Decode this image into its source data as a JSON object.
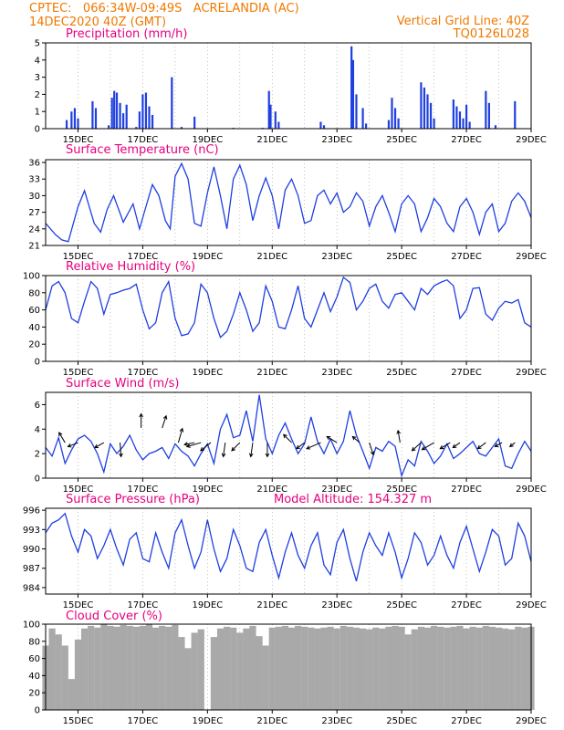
{
  "header": {
    "line1_left": "CPTEC:   066:34W-09:49S   ACRELANDIA (AC)",
    "line2_left": "14DEC2020 40Z (GMT)",
    "line1_right": "Vertical Grid Line: 40Z",
    "line2_right": "TQ0126L028"
  },
  "colors": {
    "header": "#f07800",
    "title": "#e6007e",
    "line": "#1f3fe0",
    "cloud": "#a9a9a9",
    "arrow": "#000000"
  },
  "date_labels": [
    "15DEC",
    "17DEC",
    "19DEC",
    "21DEC",
    "23DEC",
    "25DEC",
    "27DEC",
    "29DEC"
  ],
  "chart_data": [
    {
      "id": "precip",
      "type": "bar",
      "title": "Precipitation (mm/h)",
      "yticks": [
        0,
        1,
        2,
        3,
        4,
        5
      ],
      "ylim": [
        0,
        5
      ],
      "x": [
        14.65,
        14.8,
        14.9,
        15.0,
        15.45,
        15.55,
        15.95,
        16.05,
        16.12,
        16.2,
        16.3,
        16.4,
        16.5,
        16.8,
        16.9,
        17.0,
        17.1,
        17.2,
        17.3,
        17.9,
        18.2,
        18.6,
        19.8,
        20.7,
        20.9,
        20.95,
        21.1,
        21.2,
        22.5,
        22.6,
        23.45,
        23.5,
        23.6,
        23.8,
        23.9,
        24.6,
        24.7,
        24.8,
        24.9,
        25.6,
        25.7,
        25.8,
        25.9,
        26.0,
        26.6,
        26.7,
        26.8,
        26.9,
        27.0,
        27.1,
        27.6,
        27.7,
        27.9,
        28.5
      ],
      "values": [
        0.5,
        1.0,
        1.2,
        0.6,
        1.6,
        1.2,
        0.2,
        1.8,
        2.2,
        2.1,
        1.5,
        0.9,
        1.4,
        0.1,
        1.0,
        2.0,
        2.1,
        1.3,
        0.8,
        3.0,
        0.1,
        0.7,
        0.05,
        0.05,
        2.2,
        1.4,
        1.0,
        0.4,
        0.4,
        0.2,
        4.8,
        4.0,
        2.0,
        1.2,
        0.3,
        0.5,
        1.8,
        1.2,
        0.6,
        2.7,
        2.4,
        2.0,
        1.5,
        0.6,
        1.7,
        1.3,
        1.0,
        0.6,
        1.4,
        0.4,
        2.2,
        1.5,
        0.2,
        1.6
      ]
    },
    {
      "id": "temp",
      "type": "line",
      "title": "Surface Temperature (nC)",
      "yticks": [
        21,
        24,
        27,
        30,
        33,
        36
      ],
      "ylim": [
        21,
        36.5
      ],
      "x": [
        14.0,
        14.3,
        14.5,
        14.7,
        15.0,
        15.2,
        15.5,
        15.7,
        15.9,
        16.1,
        16.4,
        16.7,
        16.9,
        17.1,
        17.3,
        17.5,
        17.7,
        17.85,
        18.0,
        18.2,
        18.4,
        18.6,
        18.8,
        19.0,
        19.2,
        19.4,
        19.6,
        19.8,
        20.0,
        20.2,
        20.4,
        20.6,
        20.8,
        21.0,
        21.2,
        21.4,
        21.6,
        21.8,
        22.0,
        22.2,
        22.4,
        22.6,
        22.8,
        23.0,
        23.2,
        23.4,
        23.6,
        23.8,
        24.0,
        24.2,
        24.4,
        24.6,
        24.8,
        25.0,
        25.2,
        25.4,
        25.6,
        25.8,
        26.0,
        26.2,
        26.4,
        26.6,
        26.8,
        27.0,
        27.2,
        27.4,
        27.6,
        27.8,
        28.0,
        28.2,
        28.4,
        28.6,
        28.8,
        29.0
      ],
      "values": [
        25.0,
        23.0,
        22.0,
        21.7,
        28.0,
        30.9,
        25.0,
        23.4,
        27.5,
        30.0,
        25.2,
        28.5,
        24.0,
        28.0,
        32.0,
        30.0,
        25.5,
        24.0,
        33.5,
        35.8,
        33.0,
        25.0,
        24.5,
        30.5,
        35.2,
        30.0,
        24.0,
        33.0,
        35.5,
        32.0,
        25.5,
        30.0,
        33.2,
        30.0,
        24.0,
        31.0,
        33.0,
        30.0,
        25.0,
        25.5,
        30.0,
        31.0,
        28.5,
        30.5,
        27.0,
        28.0,
        30.5,
        29.0,
        24.5,
        28.0,
        30.0,
        27.0,
        23.5,
        28.5,
        30.0,
        28.5,
        23.5,
        26.0,
        29.5,
        28.0,
        25.0,
        23.5,
        28.0,
        29.5,
        27.0,
        23.0,
        27.0,
        28.5,
        23.5,
        25.0,
        29.0,
        30.5,
        29.0,
        26.0
      ]
    },
    {
      "id": "rh",
      "type": "line",
      "title": "Relative Humidity (%)",
      "yticks": [
        0,
        20,
        40,
        60,
        80,
        100
      ],
      "ylim": [
        0,
        100
      ],
      "x": [
        14.0,
        14.2,
        14.4,
        14.6,
        14.8,
        15.0,
        15.2,
        15.4,
        15.6,
        15.8,
        16.0,
        16.2,
        16.4,
        16.6,
        16.8,
        17.0,
        17.2,
        17.4,
        17.6,
        17.8,
        18.0,
        18.2,
        18.4,
        18.6,
        18.8,
        19.0,
        19.2,
        19.4,
        19.6,
        19.8,
        20.0,
        20.2,
        20.4,
        20.6,
        20.8,
        21.0,
        21.2,
        21.4,
        21.6,
        21.8,
        22.0,
        22.2,
        22.4,
        22.6,
        22.8,
        23.0,
        23.2,
        23.4,
        23.6,
        23.8,
        24.0,
        24.2,
        24.4,
        24.6,
        24.8,
        25.0,
        25.2,
        25.4,
        25.6,
        25.8,
        26.0,
        26.2,
        26.4,
        26.6,
        26.8,
        27.0,
        27.2,
        27.4,
        27.6,
        27.8,
        28.0,
        28.2,
        28.4,
        28.6,
        28.8,
        29.0
      ],
      "values": [
        60,
        88,
        93,
        80,
        50,
        45,
        70,
        93,
        85,
        55,
        78,
        80,
        83,
        85,
        90,
        60,
        38,
        45,
        80,
        93,
        50,
        30,
        32,
        45,
        90,
        80,
        50,
        28,
        35,
        55,
        80,
        60,
        35,
        45,
        88,
        70,
        40,
        38,
        60,
        88,
        50,
        40,
        60,
        80,
        58,
        75,
        98,
        92,
        60,
        70,
        85,
        90,
        70,
        62,
        78,
        80,
        70,
        60,
        85,
        78,
        88,
        92,
        95,
        88,
        50,
        60,
        85,
        86,
        55,
        48,
        62,
        70,
        68,
        72,
        45,
        40
      ]
    },
    {
      "id": "wind",
      "type": "line",
      "title": "Surface Wind (m/s)",
      "yticks": [
        0,
        2,
        4,
        6
      ],
      "ylim": [
        0,
        7
      ],
      "x": [
        14.0,
        14.2,
        14.4,
        14.6,
        14.8,
        15.0,
        15.2,
        15.4,
        15.6,
        15.8,
        16.0,
        16.2,
        16.4,
        16.6,
        16.8,
        17.0,
        17.2,
        17.4,
        17.6,
        17.8,
        18.0,
        18.2,
        18.4,
        18.6,
        18.8,
        19.0,
        19.2,
        19.4,
        19.6,
        19.8,
        20.0,
        20.2,
        20.4,
        20.6,
        20.8,
        21.0,
        21.2,
        21.4,
        21.6,
        21.8,
        22.0,
        22.2,
        22.4,
        22.6,
        22.8,
        23.0,
        23.2,
        23.4,
        23.6,
        23.8,
        24.0,
        24.2,
        24.4,
        24.6,
        24.8,
        25.0,
        25.2,
        25.4,
        25.6,
        25.8,
        26.0,
        26.2,
        26.4,
        26.6,
        26.8,
        27.0,
        27.2,
        27.4,
        27.6,
        27.8,
        28.0,
        28.2,
        28.4,
        28.6,
        28.8,
        29.0
      ],
      "values": [
        2.5,
        1.8,
        3.3,
        1.2,
        2.3,
        3.2,
        3.5,
        3.0,
        2.0,
        0.5,
        2.8,
        2.0,
        2.6,
        3.5,
        2.3,
        1.5,
        2.0,
        2.2,
        2.5,
        1.6,
        2.8,
        2.2,
        1.8,
        1.0,
        2.0,
        2.8,
        1.2,
        4.0,
        5.2,
        3.3,
        3.5,
        5.5,
        3.0,
        6.8,
        3.2,
        2.0,
        3.5,
        4.5,
        3.2,
        2.0,
        2.8,
        5.0,
        3.0,
        2.0,
        3.2,
        2.0,
        3.0,
        5.5,
        3.5,
        2.2,
        0.8,
        2.5,
        2.2,
        3.0,
        2.6,
        0.2,
        1.5,
        1.0,
        3.0,
        2.2,
        1.2,
        1.8,
        2.8,
        1.6,
        2.0,
        2.5,
        3.0,
        2.0,
        1.8,
        2.5,
        3.2,
        1.0,
        0.8,
        2.0,
        3.0,
        2.2
      ],
      "arrows": [
        {
          "x": 14.6,
          "y": 2.9,
          "dx": -0.3,
          "dy": -0.5
        },
        {
          "x": 15.0,
          "y": 2.9,
          "dx": -0.5,
          "dy": 0.2
        },
        {
          "x": 15.8,
          "y": 2.9,
          "dx": -0.45,
          "dy": 0.25
        },
        {
          "x": 16.3,
          "y": 2.9,
          "dx": 0.05,
          "dy": 0.7
        },
        {
          "x": 16.95,
          "y": 4.1,
          "dx": 0.0,
          "dy": -0.7
        },
        {
          "x": 17.6,
          "y": 4.1,
          "dx": 0.2,
          "dy": -0.6
        },
        {
          "x": 18.1,
          "y": 2.9,
          "dx": 0.2,
          "dy": -0.7
        },
        {
          "x": 18.6,
          "y": 2.9,
          "dx": -0.5,
          "dy": 0.1
        },
        {
          "x": 18.8,
          "y": 2.9,
          "dx": -0.7,
          "dy": 0.2
        },
        {
          "x": 19.1,
          "y": 2.9,
          "dx": -0.5,
          "dy": 0.4
        },
        {
          "x": 19.55,
          "y": 2.9,
          "dx": -0.1,
          "dy": 0.7
        },
        {
          "x": 20.0,
          "y": 2.9,
          "dx": -0.4,
          "dy": 0.4
        },
        {
          "x": 20.4,
          "y": 2.9,
          "dx": -0.1,
          "dy": 0.7
        },
        {
          "x": 20.85,
          "y": 2.9,
          "dx": 0.0,
          "dy": 0.7
        },
        {
          "x": 21.6,
          "y": 2.9,
          "dx": -0.4,
          "dy": -0.4
        },
        {
          "x": 22.0,
          "y": 2.9,
          "dx": -0.4,
          "dy": 0.3
        },
        {
          "x": 22.5,
          "y": 2.9,
          "dx": -0.7,
          "dy": 0.3
        },
        {
          "x": 23.0,
          "y": 2.9,
          "dx": -0.5,
          "dy": -0.3
        },
        {
          "x": 23.7,
          "y": 2.9,
          "dx": -0.35,
          "dy": -0.3
        },
        {
          "x": 24.0,
          "y": 2.9,
          "dx": 0.2,
          "dy": 0.6
        },
        {
          "x": 24.95,
          "y": 2.9,
          "dx": -0.1,
          "dy": -0.6
        },
        {
          "x": 25.6,
          "y": 2.9,
          "dx": -0.45,
          "dy": 0.4
        },
        {
          "x": 26.0,
          "y": 2.9,
          "dx": -0.6,
          "dy": 0.35
        },
        {
          "x": 26.5,
          "y": 2.9,
          "dx": -0.5,
          "dy": 0.3
        },
        {
          "x": 26.8,
          "y": 2.9,
          "dx": -0.35,
          "dy": 0.25
        },
        {
          "x": 27.6,
          "y": 2.9,
          "dx": -0.4,
          "dy": 0.3
        },
        {
          "x": 28.1,
          "y": 2.9,
          "dx": -0.35,
          "dy": 0.2
        },
        {
          "x": 28.5,
          "y": 2.9,
          "dx": -0.25,
          "dy": 0.2
        }
      ]
    },
    {
      "id": "pres",
      "type": "line",
      "title": "Surface Pressure (hPa)",
      "extra_label": "Model Altitude: 154.327 m",
      "yticks": [
        984,
        987,
        990,
        993,
        996
      ],
      "ylim": [
        983,
        996.3
      ],
      "x": [
        14.0,
        14.2,
        14.4,
        14.6,
        14.8,
        15.0,
        15.2,
        15.4,
        15.6,
        15.8,
        16.0,
        16.2,
        16.4,
        16.6,
        16.8,
        17.0,
        17.2,
        17.4,
        17.6,
        17.8,
        18.0,
        18.2,
        18.4,
        18.6,
        18.8,
        19.0,
        19.2,
        19.4,
        19.6,
        19.8,
        20.0,
        20.2,
        20.4,
        20.6,
        20.8,
        21.0,
        21.2,
        21.4,
        21.6,
        21.8,
        22.0,
        22.2,
        22.4,
        22.6,
        22.8,
        23.0,
        23.2,
        23.4,
        23.6,
        23.8,
        24.0,
        24.2,
        24.4,
        24.6,
        24.8,
        25.0,
        25.2,
        25.4,
        25.6,
        25.8,
        26.0,
        26.2,
        26.4,
        26.6,
        26.8,
        27.0,
        27.2,
        27.4,
        27.6,
        27.8,
        28.0,
        28.2,
        28.4,
        28.6,
        28.8,
        29.0
      ],
      "values": [
        992.5,
        994.0,
        994.5,
        995.5,
        992.0,
        989.5,
        993.0,
        992.0,
        988.5,
        990.5,
        993.0,
        990.0,
        987.5,
        991.5,
        992.5,
        988.5,
        988.0,
        992.5,
        989.5,
        987.0,
        992.5,
        994.5,
        990.5,
        987.0,
        989.5,
        994.5,
        990.0,
        986.5,
        988.5,
        993.0,
        990.5,
        987.0,
        986.5,
        991.0,
        993.0,
        989.0,
        985.5,
        989.5,
        992.5,
        989.0,
        987.0,
        990.5,
        992.5,
        987.5,
        986.0,
        991.0,
        993.0,
        988.5,
        985.0,
        989.5,
        992.5,
        990.5,
        989.0,
        992.5,
        989.5,
        985.5,
        988.5,
        992.5,
        991.0,
        987.5,
        989.0,
        992.0,
        989.0,
        987.0,
        991.0,
        993.5,
        990.0,
        986.5,
        989.5,
        993.0,
        992.0,
        987.5,
        988.5,
        994.0,
        992.0,
        988.0
      ]
    },
    {
      "id": "cloud",
      "type": "bar",
      "title": "Cloud Cover (%)",
      "yticks": [
        0,
        20,
        40,
        60,
        80,
        100
      ],
      "ylim": [
        0,
        100
      ],
      "x": [
        14.0,
        14.2,
        14.4,
        14.6,
        14.8,
        15.0,
        15.2,
        15.4,
        15.6,
        15.8,
        16.0,
        16.2,
        16.4,
        16.6,
        16.8,
        17.0,
        17.2,
        17.4,
        17.6,
        17.8,
        18.0,
        18.2,
        18.4,
        18.6,
        18.8,
        19.0,
        19.2,
        19.4,
        19.6,
        19.8,
        20.0,
        20.2,
        20.4,
        20.6,
        20.8,
        21.0,
        21.2,
        21.4,
        21.6,
        21.8,
        22.0,
        22.2,
        22.4,
        22.6,
        22.8,
        23.0,
        23.2,
        23.4,
        23.6,
        23.8,
        24.0,
        24.2,
        24.4,
        24.6,
        24.8,
        25.0,
        25.2,
        25.4,
        25.6,
        25.8,
        26.0,
        26.2,
        26.4,
        26.6,
        26.8,
        27.0,
        27.2,
        27.4,
        27.6,
        27.8,
        28.0,
        28.2,
        28.4,
        28.6,
        28.8,
        29.0
      ],
      "values": [
        75,
        95,
        88,
        75,
        36,
        82,
        95,
        98,
        96,
        100,
        98,
        97,
        99,
        98,
        97,
        98,
        100,
        96,
        98,
        97,
        99,
        85,
        72,
        90,
        94,
        0,
        85,
        95,
        97,
        96,
        90,
        95,
        98,
        86,
        75,
        96,
        97,
        98,
        96,
        98,
        97,
        96,
        95,
        96,
        97,
        95,
        98,
        97,
        96,
        95,
        94,
        96,
        95,
        97,
        98,
        97,
        88,
        94,
        97,
        96,
        98,
        97,
        96,
        97,
        98,
        95,
        97,
        96,
        98,
        97,
        96,
        95,
        94,
        97,
        96,
        97
      ]
    }
  ]
}
